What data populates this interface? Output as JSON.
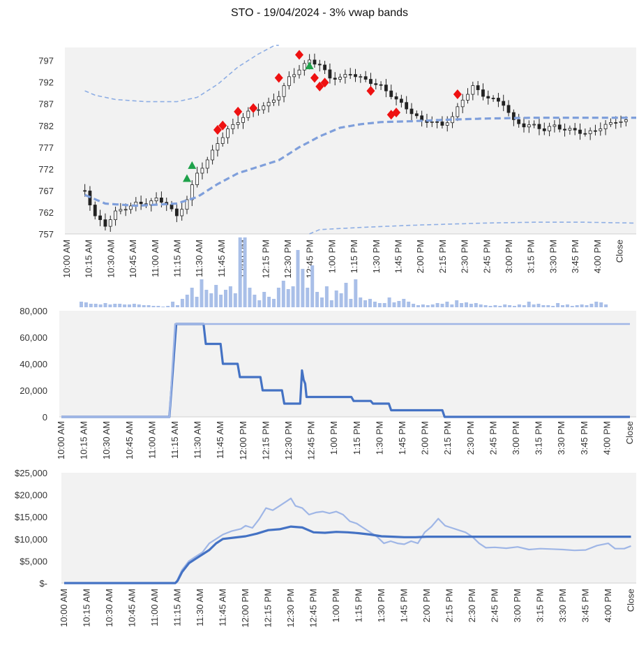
{
  "title": "STO - 19/04/2024 - 3% vwap bands",
  "colors": {
    "plot_bg": "#f2f2f2",
    "band_light": "#8eaee4",
    "vwap_dashed": "#7f9fdb",
    "candle": "#222222",
    "buy_marker": "#1ea14a",
    "sell_marker": "#ee1111",
    "volume_bar": "#a9bfe8",
    "series_dark": "#4472c4",
    "series_light": "#9fb6e6"
  },
  "chart_data": [
    {
      "type": "candlestick",
      "name": "price",
      "ylim": [
        757,
        800
      ],
      "y_ticks": [
        "797",
        "792",
        "787",
        "782",
        "777",
        "772",
        "767",
        "762",
        "757"
      ],
      "x_ticks": [
        "10:00 AM",
        "10:15 AM",
        "10:30 AM",
        "10:45 AM",
        "11:00 AM",
        "11:15 AM",
        "11:30 AM",
        "11:45 AM",
        "12:00 PM",
        "12:15 PM",
        "12:30 PM",
        "12:45 PM",
        "1:00 PM",
        "1:15 PM",
        "1:30 PM",
        "1:45 PM",
        "2:00 PM",
        "2:15 PM",
        "2:30 PM",
        "2:45 PM",
        "3:00 PM",
        "3:15 PM",
        "3:30 PM",
        "3:45 PM",
        "4:00 PM",
        "Close"
      ],
      "close_anchors": [
        [
          2,
          767
        ],
        [
          4,
          761
        ],
        [
          6,
          759
        ],
        [
          8,
          762
        ],
        [
          10,
          763
        ],
        [
          12,
          764
        ],
        [
          14,
          764
        ],
        [
          16,
          765
        ],
        [
          18,
          764
        ],
        [
          20,
          761
        ],
        [
          22,
          765
        ],
        [
          24,
          771
        ],
        [
          26,
          774
        ],
        [
          28,
          778
        ],
        [
          30,
          781
        ],
        [
          32,
          783
        ],
        [
          34,
          785
        ],
        [
          36,
          786
        ],
        [
          38,
          787
        ],
        [
          40,
          789
        ],
        [
          42,
          793
        ],
        [
          44,
          795
        ],
        [
          46,
          797
        ],
        [
          48,
          796
        ],
        [
          50,
          793
        ],
        [
          52,
          793
        ],
        [
          54,
          794
        ],
        [
          56,
          793
        ],
        [
          58,
          792
        ],
        [
          60,
          791
        ],
        [
          62,
          789
        ],
        [
          64,
          787
        ],
        [
          66,
          785
        ],
        [
          68,
          783
        ],
        [
          70,
          783
        ],
        [
          72,
          782
        ],
        [
          74,
          784
        ],
        [
          76,
          788
        ],
        [
          78,
          791
        ],
        [
          80,
          789
        ],
        [
          82,
          788
        ],
        [
          84,
          787
        ],
        [
          86,
          783
        ],
        [
          88,
          782
        ],
        [
          90,
          782
        ],
        [
          92,
          781
        ],
        [
          94,
          782
        ],
        [
          96,
          781
        ],
        [
          98,
          781
        ],
        [
          100,
          780
        ],
        [
          102,
          781
        ],
        [
          104,
          782
        ],
        [
          106,
          783
        ],
        [
          108,
          783
        ]
      ],
      "vwap_anchors": [
        [
          2,
          766
        ],
        [
          6,
          764
        ],
        [
          12,
          763.5
        ],
        [
          20,
          764
        ],
        [
          24,
          765.5
        ],
        [
          28,
          768.5
        ],
        [
          32,
          771
        ],
        [
          36,
          772.5
        ],
        [
          40,
          774
        ],
        [
          44,
          777
        ],
        [
          48,
          779.5
        ],
        [
          52,
          781.5
        ],
        [
          56,
          782.3
        ],
        [
          60,
          782.8
        ],
        [
          66,
          783
        ],
        [
          72,
          783.3
        ],
        [
          80,
          783.6
        ],
        [
          90,
          783.8
        ],
        [
          100,
          783.8
        ],
        [
          110,
          783.8
        ]
      ],
      "upper_band_anchors": [
        [
          2,
          790
        ],
        [
          4,
          789
        ],
        [
          8,
          788
        ],
        [
          14,
          787.5
        ],
        [
          20,
          787.5
        ],
        [
          24,
          788.5
        ],
        [
          28,
          791.5
        ],
        [
          32,
          795.5
        ],
        [
          36,
          798.5
        ],
        [
          40,
          801
        ]
      ],
      "lower_band_anchors": [
        [
          46,
          757
        ],
        [
          48,
          758
        ],
        [
          56,
          758.5
        ],
        [
          66,
          759
        ],
        [
          80,
          759.5
        ],
        [
          90,
          759.7
        ],
        [
          100,
          759.7
        ],
        [
          110,
          759.5
        ]
      ],
      "buy_markers": [
        [
          22,
          769.8
        ],
        [
          23,
          772.8
        ],
        [
          46,
          795.8
        ]
      ],
      "sell_markers": [
        [
          28,
          781
        ],
        [
          29,
          782
        ],
        [
          32,
          785.2
        ],
        [
          35,
          786
        ],
        [
          40,
          793
        ],
        [
          44,
          798.3
        ],
        [
          47,
          793
        ],
        [
          48,
          791
        ],
        [
          49,
          791.9
        ],
        [
          58,
          790
        ],
        [
          62,
          784.5
        ],
        [
          63,
          785
        ],
        [
          75,
          789.2
        ]
      ]
    },
    {
      "type": "bar",
      "name": "volume",
      "ylim": [
        0,
        100
      ],
      "values": [
        8,
        7,
        5,
        5,
        4,
        6,
        4,
        5,
        5,
        4,
        4,
        5,
        4,
        3,
        3,
        2,
        2,
        1,
        2,
        8,
        3,
        12,
        18,
        28,
        15,
        40,
        25,
        20,
        32,
        18,
        25,
        30,
        20,
        14,
        8,
        28,
        18,
        10,
        22,
        15,
        12,
        14,
        38,
        26,
        30,
        15,
        55,
        28,
        18,
        22,
        14,
        30,
        10,
        24,
        20,
        35,
        12,
        8,
        14,
        10,
        12,
        8,
        6,
        6,
        14,
        7,
        9,
        12,
        8,
        5,
        3,
        4,
        3,
        4,
        6,
        5,
        8,
        4,
        10,
        6,
        7,
        5,
        6,
        4,
        3,
        2,
        3,
        2,
        4,
        3,
        2,
        4,
        3,
        8,
        4,
        5,
        3,
        3,
        2,
        6,
        3,
        4,
        2,
        3,
        4,
        3,
        5,
        8,
        7,
        4
      ],
      "spikes": [
        [
          33,
          100
        ],
        [
          34,
          100
        ],
        [
          41,
          28
        ],
        [
          45,
          82
        ],
        [
          48,
          60
        ],
        [
          57,
          40
        ]
      ]
    },
    {
      "type": "line",
      "name": "position",
      "ylim": [
        0,
        80000
      ],
      "y_ticks": [
        "80,000",
        "60,000",
        "40,000",
        "20,000",
        "0"
      ],
      "x_ticks": [
        "10:00 AM",
        "10:15 AM",
        "10:30 AM",
        "10:45 AM",
        "11:00 AM",
        "11:15 AM",
        "11:30 AM",
        "11:45 AM",
        "12:00 PM",
        "12:15 PM",
        "12:30 PM",
        "12:45 PM",
        "1:00 PM",
        "1:15 PM",
        "1:30 PM",
        "1:45 PM",
        "2:00 PM",
        "2:15 PM",
        "2:30 PM",
        "2:45 PM",
        "3:00 PM",
        "3:15 PM",
        "3:30 PM",
        "3:45 PM",
        "4:00 PM",
        "Close"
      ],
      "series": [
        {
          "values": [
            [
              0,
              0
            ],
            [
              4.75,
              0
            ],
            [
              5.05,
              70000
            ],
            [
              6.25,
              70000
            ],
            [
              6.35,
              55000
            ],
            [
              7.0,
              55000
            ],
            [
              7.1,
              40000
            ],
            [
              7.75,
              40000
            ],
            [
              7.85,
              30000
            ],
            [
              8.75,
              30000
            ],
            [
              8.85,
              20000
            ],
            [
              9.7,
              20000
            ],
            [
              9.8,
              10000
            ],
            [
              10.5,
              10000
            ],
            [
              10.58,
              35000
            ],
            [
              10.65,
              28000
            ],
            [
              10.72,
              25000
            ],
            [
              10.78,
              15000
            ],
            [
              12.75,
              15000
            ],
            [
              12.85,
              12000
            ],
            [
              13.6,
              12000
            ],
            [
              13.7,
              10000
            ],
            [
              14.4,
              10000
            ],
            [
              14.5,
              5000
            ],
            [
              16.75,
              5000
            ],
            [
              16.85,
              0
            ],
            [
              25,
              0
            ]
          ]
        },
        {
          "values": [
            [
              0,
              0
            ],
            [
              4.75,
              0
            ],
            [
              5.0,
              70000
            ],
            [
              25,
              70000
            ]
          ]
        }
      ]
    },
    {
      "type": "line",
      "name": "value",
      "ylim": [
        0,
        25000
      ],
      "y_ticks": [
        "$25,000",
        "$20,000",
        "$15,000",
        "$10,000",
        "$5,000",
        "$-"
      ],
      "x_ticks": [
        "10:00 AM",
        "10:15 AM",
        "10:30 AM",
        "10:45 AM",
        "11:00 AM",
        "11:15 AM",
        "11:30 AM",
        "11:45 AM",
        "12:00 PM",
        "12:15 PM",
        "12:30 PM",
        "12:45 PM",
        "1:00 PM",
        "1:15 PM",
        "1:30 PM",
        "1:45 PM",
        "2:00 PM",
        "2:15 PM",
        "2:30 PM",
        "2:45 PM",
        "3:00 PM",
        "3:15 PM",
        "3:30 PM",
        "3:45 PM",
        "4:00 PM",
        "Close"
      ],
      "series": [
        {
          "values": [
            [
              0,
              0
            ],
            [
              4.9,
              0
            ],
            [
              5.0,
              500
            ],
            [
              5.2,
              2500
            ],
            [
              5.5,
              4500
            ],
            [
              5.8,
              5500
            ],
            [
              6.1,
              6500
            ],
            [
              6.4,
              7500
            ],
            [
              6.7,
              9000
            ],
            [
              7.0,
              10000
            ],
            [
              7.5,
              10300
            ],
            [
              8.0,
              10600
            ],
            [
              8.5,
              11200
            ],
            [
              9.0,
              12000
            ],
            [
              9.5,
              12200
            ],
            [
              10.0,
              12800
            ],
            [
              10.5,
              12600
            ],
            [
              11.0,
              11500
            ],
            [
              11.5,
              11400
            ],
            [
              12.0,
              11600
            ],
            [
              12.5,
              11500
            ],
            [
              13.0,
              11300
            ],
            [
              13.5,
              11000
            ],
            [
              14.0,
              10600
            ],
            [
              14.5,
              10500
            ],
            [
              15.0,
              10400
            ],
            [
              15.5,
              10400
            ],
            [
              16.0,
              10500
            ],
            [
              16.5,
              10500
            ],
            [
              17.0,
              10500
            ],
            [
              20.0,
              10500
            ],
            [
              25,
              10500
            ]
          ]
        },
        {
          "values": [
            [
              0,
              0
            ],
            [
              4.9,
              0
            ],
            [
              5.0,
              800
            ],
            [
              5.2,
              3000
            ],
            [
              5.5,
              5000
            ],
            [
              5.8,
              6000
            ],
            [
              6.1,
              7000
            ],
            [
              6.4,
              9000
            ],
            [
              6.7,
              10000
            ],
            [
              7.0,
              11000
            ],
            [
              7.4,
              11800
            ],
            [
              7.8,
              12300
            ],
            [
              8.0,
              13000
            ],
            [
              8.3,
              12500
            ],
            [
              8.6,
              14500
            ],
            [
              8.9,
              17000
            ],
            [
              9.2,
              16500
            ],
            [
              9.5,
              17500
            ],
            [
              9.8,
              18500
            ],
            [
              10.0,
              19200
            ],
            [
              10.2,
              17500
            ],
            [
              10.5,
              17000
            ],
            [
              10.8,
              15500
            ],
            [
              11.1,
              16000
            ],
            [
              11.4,
              16200
            ],
            [
              11.7,
              15800
            ],
            [
              12.0,
              16200
            ],
            [
              12.3,
              15500
            ],
            [
              12.6,
              14000
            ],
            [
              12.9,
              13500
            ],
            [
              13.2,
              12500
            ],
            [
              13.5,
              11500
            ],
            [
              13.8,
              10500
            ],
            [
              14.1,
              9000
            ],
            [
              14.4,
              9500
            ],
            [
              14.7,
              9000
            ],
            [
              15.0,
              8800
            ],
            [
              15.3,
              9500
            ],
            [
              15.6,
              9000
            ],
            [
              15.9,
              11500
            ],
            [
              16.2,
              12800
            ],
            [
              16.5,
              14600
            ],
            [
              16.8,
              13000
            ],
            [
              17.1,
              12500
            ],
            [
              17.4,
              12000
            ],
            [
              17.7,
              11500
            ],
            [
              18.0,
              10500
            ],
            [
              18.3,
              9000
            ],
            [
              18.6,
              8000
            ],
            [
              19.0,
              8100
            ],
            [
              19.5,
              7900
            ],
            [
              20.0,
              8200
            ],
            [
              20.5,
              7600
            ],
            [
              21.0,
              7800
            ],
            [
              21.5,
              7700
            ],
            [
              22.0,
              7600
            ],
            [
              22.5,
              7400
            ],
            [
              23.0,
              7500
            ],
            [
              23.5,
              8500
            ],
            [
              24.0,
              9000
            ],
            [
              24.3,
              7800
            ],
            [
              24.7,
              7800
            ],
            [
              25,
              8400
            ]
          ]
        }
      ]
    }
  ]
}
